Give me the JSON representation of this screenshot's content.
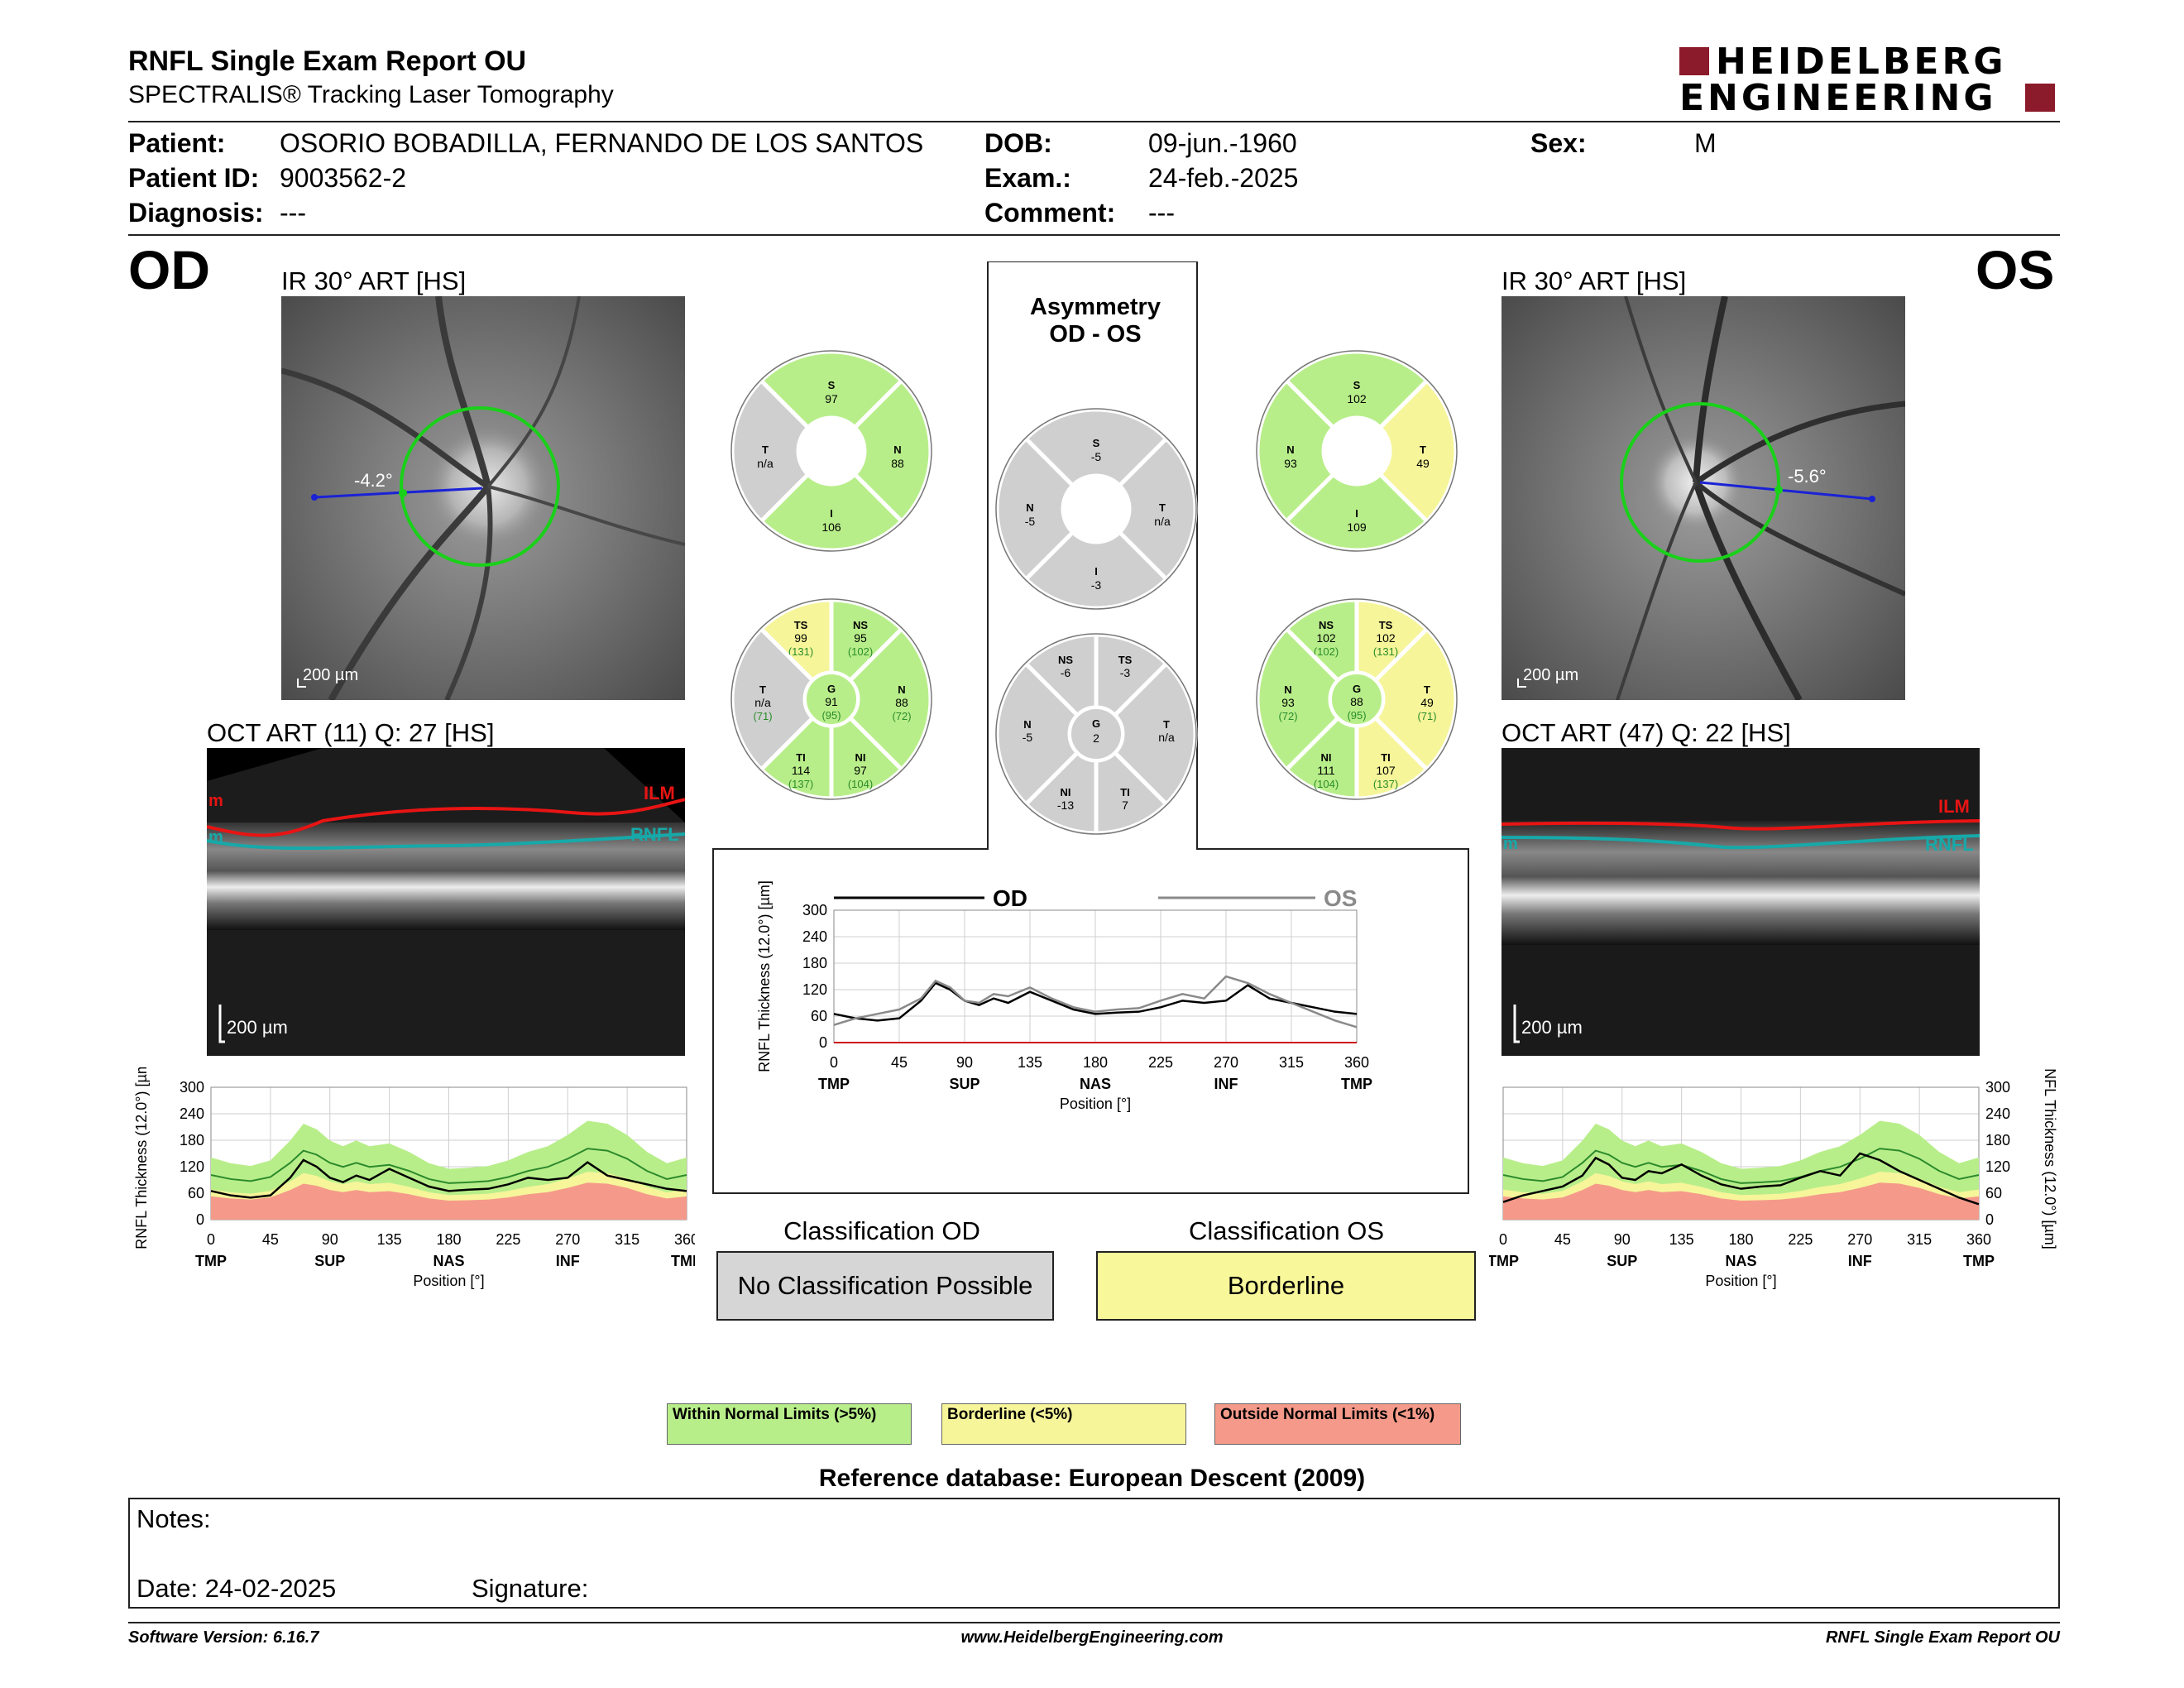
{
  "header": {
    "title": "RNFL Single Exam Report OU",
    "subtitle": "SPECTRALIS® Tracking Laser Tomography",
    "logo": "HEIDELBERG ENGINEERING"
  },
  "patient": {
    "patient_label": "Patient:",
    "patient_value": "OSORIO BOBADILLA, FERNANDO DE LOS SANTOS",
    "id_label": "Patient ID:",
    "id_value": "9003562-2",
    "diag_label": "Diagnosis:",
    "diag_value": "---",
    "dob_label": "DOB:",
    "dob_value": "09-jun.-1960",
    "exam_label": "Exam.:",
    "exam_value": "24-feb.-2025",
    "comment_label": "Comment:",
    "comment_value": "---",
    "sex_label": "Sex:",
    "sex_value": "M"
  },
  "od": {
    "eye": "OD",
    "ir_label": "IR 30° ART [HS]",
    "angle": "-4.2°",
    "ir_scale": "200 µm",
    "oct_label": "OCT ART (11) Q: 27 [HS]",
    "oct_scale": "200 µm",
    "ilm": "ILM",
    "rnfl": "RNFL",
    "m": "m",
    "sectors": {
      "S": "97",
      "N": "88",
      "I": "106",
      "T": "n/a"
    },
    "six": {
      "TS": [
        "99",
        "(131)"
      ],
      "NS": [
        "95",
        "(102)"
      ],
      "T": [
        "n/a",
        "(71)"
      ],
      "G": [
        "91",
        "(95)"
      ],
      "N": [
        "88",
        "(72)"
      ],
      "TI": [
        "114",
        "(137)"
      ],
      "NI": [
        "97",
        "(104)"
      ]
    },
    "classification_title": "Classification OD",
    "classification": "No Classification Possible"
  },
  "os": {
    "eye": "OS",
    "ir_label": "IR 30° ART [HS]",
    "angle": "-5.6°",
    "ir_scale": "200 µm",
    "oct_label": "OCT ART (47) Q: 22 [HS]",
    "oct_scale": "200 µm",
    "ilm": "ILM",
    "rnfl": "RNFL",
    "m": "m",
    "sectors": {
      "S": "102",
      "N": "93",
      "I": "109",
      "T": "49"
    },
    "six": {
      "NS": [
        "102",
        "(102)"
      ],
      "TS": [
        "102",
        "(131)"
      ],
      "N": [
        "93",
        "(72)"
      ],
      "G": [
        "88",
        "(95)"
      ],
      "T": [
        "49",
        "(71)"
      ],
      "NI": [
        "111",
        "(104)"
      ],
      "TI": [
        "107",
        "(137)"
      ]
    },
    "classification_title": "Classification OS",
    "classification": "Borderline"
  },
  "asym": {
    "title1": "Asymmetry",
    "title2": "OD - OS",
    "sectors": {
      "S": "-5",
      "N": "-5",
      "I": "-3",
      "T": "n/a"
    },
    "six": {
      "NS": "-6",
      "TS": "-3",
      "N": "-5",
      "G": "2",
      "T": "n/a",
      "NI": "-13",
      "TI": "7"
    },
    "legend_od": "OD",
    "legend_os": "OS"
  },
  "axes": {
    "ylabel": "RNFL Thickness (12.0°) [µm]",
    "xlabel": "Position [°]",
    "yticks": [
      "300",
      "240",
      "180",
      "120",
      "60",
      "0"
    ],
    "xticks": [
      "0",
      "45",
      "90",
      "135",
      "180",
      "225",
      "270",
      "315",
      "360"
    ],
    "regions": [
      "TMP",
      "SUP",
      "NAS",
      "INF",
      "TMP"
    ]
  },
  "legend": {
    "normal": "Within Normal Limits (>5%)",
    "borderline": "Borderline (<5%)",
    "outside": "Outside Normal Limits (<1%)",
    "database": "Reference database: European Descent (2009)"
  },
  "notes": {
    "notes_label": "Notes:",
    "date_label": "Date: 24-02-2025",
    "signature_label": "Signature:"
  },
  "footer": {
    "version": "Software Version: 6.16.7",
    "url": "www.HeidelbergEngineering.com",
    "report": "RNFL Single Exam Report OU"
  },
  "colors": {
    "normal": "#b8ee8a",
    "borderline": "#f6f59a",
    "outside": "#f59a8a",
    "na": "#cfcfcf",
    "logo_red": "#8b1a2a"
  },
  "chart_data": [
    {
      "type": "line",
      "name": "OD TSNIT",
      "x": [
        0,
        15,
        30,
        45,
        60,
        70,
        80,
        90,
        100,
        110,
        120,
        135,
        150,
        165,
        180,
        195,
        210,
        225,
        240,
        255,
        270,
        285,
        300,
        315,
        330,
        345,
        360
      ],
      "series": [
        {
          "name": "OD",
          "values": [
            65,
            55,
            50,
            55,
            95,
            135,
            120,
            95,
            85,
            100,
            90,
            115,
            95,
            75,
            65,
            68,
            70,
            80,
            95,
            90,
            95,
            130,
            100,
            90,
            80,
            70,
            65
          ]
        }
      ],
      "ylim": [
        0,
        300
      ],
      "xlim": [
        0,
        360
      ]
    },
    {
      "type": "line",
      "name": "Asymmetry",
      "x": [
        0,
        15,
        30,
        45,
        60,
        70,
        80,
        90,
        100,
        110,
        120,
        135,
        150,
        165,
        180,
        195,
        210,
        225,
        240,
        255,
        270,
        285,
        300,
        315,
        330,
        345,
        360
      ],
      "series": [
        {
          "name": "OD",
          "values": [
            65,
            55,
            50,
            55,
            95,
            135,
            120,
            95,
            85,
            100,
            90,
            115,
            95,
            75,
            65,
            68,
            70,
            80,
            95,
            90,
            95,
            130,
            100,
            90,
            80,
            70,
            65
          ]
        },
        {
          "name": "OS",
          "values": [
            40,
            55,
            65,
            75,
            100,
            140,
            125,
            95,
            90,
            110,
            105,
            125,
            100,
            80,
            70,
            75,
            78,
            95,
            110,
            100,
            150,
            135,
            110,
            90,
            70,
            50,
            35
          ]
        }
      ],
      "ylim": [
        0,
        300
      ],
      "xlim": [
        0,
        360
      ]
    },
    {
      "type": "line",
      "name": "OS TSNIT",
      "x": [
        0,
        15,
        30,
        45,
        60,
        70,
        80,
        90,
        100,
        110,
        120,
        135,
        150,
        165,
        180,
        195,
        210,
        225,
        240,
        255,
        270,
        285,
        300,
        315,
        330,
        345,
        360
      ],
      "series": [
        {
          "name": "OS",
          "values": [
            40,
            55,
            65,
            75,
            100,
            140,
            125,
            95,
            90,
            110,
            105,
            125,
            100,
            80,
            70,
            75,
            78,
            95,
            110,
            100,
            150,
            135,
            110,
            90,
            70,
            50,
            35
          ]
        }
      ],
      "ylim": [
        0,
        300
      ],
      "xlim": [
        0,
        360
      ]
    }
  ]
}
